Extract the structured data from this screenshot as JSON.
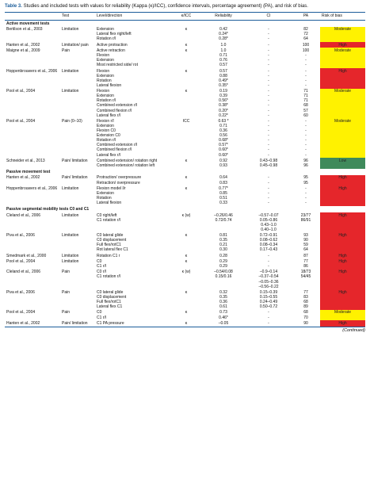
{
  "caption_label": "Table 3.",
  "caption": "Studies and included tests with values for reliability (Kappa (κ)/ICC), confidence intervals, percentage agreement) (PA), and risk of bias.",
  "columns": [
    "",
    "Test",
    "Level/direction",
    "κ/ICC",
    "Reliability",
    "CI",
    "PA",
    "Risk of bias"
  ],
  "risk_colors": {
    "High": "#e5262b",
    "Moderate": "#fff200",
    "Low": "#3f8a5b"
  },
  "sections": [
    {
      "title": "Active movement tests",
      "rows": [
        {
          "study": "Bertilson et al., 2003",
          "test": "Limitation",
          "level": [
            "Extension",
            "Lateral flex right/left",
            "Rotation r/l"
          ],
          "k": "κ",
          "rel": [
            "0.42",
            "0.24*",
            "0.28*"
          ],
          "ci": [
            "-",
            "-",
            "-"
          ],
          "pa": [
            "82",
            "72",
            "64"
          ],
          "risk": "Moderate"
        },
        {
          "study": "Hanten et al., 2002",
          "test": "Limitation/ pain",
          "level": [
            "Active protraction"
          ],
          "k": "κ",
          "rel": [
            "1.0"
          ],
          "ci": [
            "-"
          ],
          "pa": [
            "100"
          ],
          "risk": "High"
        },
        {
          "study": "Maigne et al., 2009",
          "test": "Pain",
          "level": [
            "Active retraction",
            "Flexion",
            "Extension",
            "Most restricted side/ rot"
          ],
          "k": "κ",
          "rel": [
            "1.0",
            "0.71",
            "0.76",
            "0.57"
          ],
          "ci": [
            "-",
            "-",
            "-",
            "-"
          ],
          "pa": [
            "100",
            "-",
            "-",
            "-"
          ],
          "risk": "Moderate"
        },
        {
          "study": "Hoppenbrouwers et al., 2006",
          "test": "Limitation",
          "level": [
            "Flexion",
            "Extension",
            "Rotation",
            "Lateral flexion"
          ],
          "k": "κ",
          "rel": [
            "0.57",
            "0.88",
            "0.49*",
            "0.35*"
          ],
          "ci": [
            "-",
            "-",
            "-",
            "-"
          ],
          "pa": [
            "-",
            "-",
            "-",
            "-"
          ],
          "risk": "High"
        },
        {
          "study": "Pool et al., 2004",
          "test": "Limitation",
          "level": [
            "Flexion",
            "Extension",
            "Rotation r/l",
            "Combined extension r/l",
            "Combined flexion r/l",
            "Lateral flex r/l"
          ],
          "k": "κ",
          "rel": [
            "0.19",
            "0.39",
            "0.56*",
            "0.38*",
            "0.20*",
            "0.22*"
          ],
          "ci": [
            "-",
            "-",
            "-",
            "-",
            "-",
            "-"
          ],
          "pa": [
            "71",
            "71",
            "71",
            "68",
            "57",
            "60"
          ],
          "risk": "Moderate"
        },
        {
          "study": "Pool et al., 2004",
          "test": "Pain (0–10)",
          "level": [
            "Flexion r/l",
            "Extension",
            "Flexion C0",
            "Extension C0",
            "Rotation r/l",
            "Combined extension r/l",
            "Combined flexion r/l",
            "Lateral flex r/l"
          ],
          "k": "ICC",
          "rel": [
            "0.63 *",
            "0.71",
            "0.36",
            "0.56",
            "0.68*",
            "0.57*",
            "0.60*",
            "0.60*"
          ],
          "ci": [
            "-",
            "-",
            "-",
            "-",
            "-",
            "-",
            "-",
            "-"
          ],
          "pa": [
            "-",
            "-",
            "-",
            "-",
            "-",
            "-",
            "-",
            "-"
          ],
          "risk": "Moderate"
        },
        {
          "study": "Schneider et al., 2013",
          "test": "Pain/ limitation",
          "level": [
            "Combined extension/ rotation right",
            "Combined extension/ rotation left"
          ],
          "k": "κ",
          "rel": [
            "0.92",
            "0.93"
          ],
          "ci": [
            "0.43–0.98",
            "0.45–0.98"
          ],
          "pa": [
            "96",
            "96"
          ],
          "risk": "Low"
        }
      ]
    },
    {
      "title": "Passive movement test",
      "rows": [
        {
          "study": "Hanten et al., 2002",
          "test": "Pain/ limitation",
          "level": [
            "Protraction/ overpressure",
            "Retraction/ overpressure"
          ],
          "k": "κ",
          "rel": [
            "0.64",
            "0.83"
          ],
          "ci": [
            "-",
            "-"
          ],
          "pa": [
            "95",
            "95"
          ],
          "risk": "High"
        },
        {
          "study": "Hoppenbrouwers et al., 2006",
          "test": "Limitation",
          "level": [
            "Flexion model l/r",
            "Extension",
            "Rotation",
            "Lateral flexion"
          ],
          "k": "κ",
          "rel": [
            "0.77*",
            "0.85",
            "0.51",
            "0.33"
          ],
          "ci": [
            "-",
            "-",
            "-",
            "-"
          ],
          "pa": [
            "-",
            "-",
            "-",
            "-"
          ],
          "risk": "High"
        }
      ]
    },
    {
      "title": "Passive segmental mobility tests C0 and C1",
      "rows": [
        {
          "study": "Cleland et al., 2006",
          "test": "Limitation",
          "level": [
            "C0 right/left",
            "C1 rotation r/l"
          ],
          "k": "κ (w)",
          "rel": [
            "–0.26/0.46",
            "0.72/0.74"
          ],
          "ci": [
            "–0.57–0.07",
            "0.05–0.86",
            "0.43–1.0",
            "0.40–1.0"
          ],
          "pa": [
            "23/77",
            "86/91"
          ],
          "risk": "High"
        },
        {
          "study": "Piva et al., 2006",
          "test": "Limitation",
          "level": [
            "C0 lateral glide",
            "C0 displacement",
            "Full flex/rotC1",
            "Rot lateral flex C1"
          ],
          "k": "κ",
          "rel": [
            "0.81",
            "0.35",
            "0.21",
            "0.30"
          ],
          "ci": [
            "0.72–0.91",
            "0.08–0.62",
            "0.08–0.34",
            "0.17–0.43"
          ],
          "pa": [
            "93",
            "90",
            "59",
            "64"
          ],
          "risk": "High"
        },
        {
          "study": "Smedmark et al., 2000",
          "test": "Limitation",
          "level": [
            "Rotation C1 r"
          ],
          "k": "κ",
          "rel": [
            "0.28"
          ],
          "ci": [
            "-"
          ],
          "pa": [
            "87"
          ],
          "risk": "High"
        },
        {
          "study": "Pool et al., 2004",
          "test": "Limitation",
          "level": [
            "C0",
            "C1 r/l"
          ],
          "k": "κ",
          "rel": [
            "0.29",
            "0.29"
          ],
          "ci": [
            "-",
            "-"
          ],
          "pa": [
            "77",
            "86"
          ],
          "risk": "High"
        },
        {
          "study": "Cleland et al., 2006",
          "test": "Pain",
          "level": [
            "C0 r/l",
            "C1 rotation r/l"
          ],
          "k": "κ (w)",
          "rel": [
            "–0.54/0.08",
            "0.15/0.16"
          ],
          "ci": [
            "–0.9–0.14",
            "–0.37–0.54",
            "–0.05–0.36",
            "–0.56–0.22"
          ],
          "pa": [
            "18/73",
            "54/45"
          ],
          "risk": "High"
        },
        {
          "study": "Piva et al., 2006",
          "test": "Pain",
          "level": [
            "C0 lateral glide",
            "C0 displacement",
            "Full flex/rotC1",
            "Lateral flex C1"
          ],
          "k": "κ",
          "rel": [
            "0.32",
            "0.35",
            "0.36",
            "0.61"
          ],
          "ci": [
            "0.15–0.39",
            "0.15–0.55",
            "0.24–0.49",
            "0.50–0.72"
          ],
          "pa": [
            "77",
            "83",
            "68",
            "89"
          ],
          "risk": "High"
        },
        {
          "study": "Pool et al., 2004",
          "test": "Pain",
          "level": [
            "C0",
            "C1 r/l"
          ],
          "k": "κ",
          "rel": [
            "0.73",
            "0.46*"
          ],
          "ci": [
            "-",
            "-"
          ],
          "pa": [
            "68",
            "70"
          ],
          "risk": "Moderate"
        },
        {
          "study": "Hanten et al., 2002",
          "test": "Pain/ limitation",
          "level": [
            "C1 PA pressure"
          ],
          "k": "κ",
          "rel": [
            "–0.05"
          ],
          "ci": [
            "-"
          ],
          "pa": [
            "90"
          ],
          "risk": "High"
        }
      ]
    }
  ],
  "footer": "(Continued)"
}
